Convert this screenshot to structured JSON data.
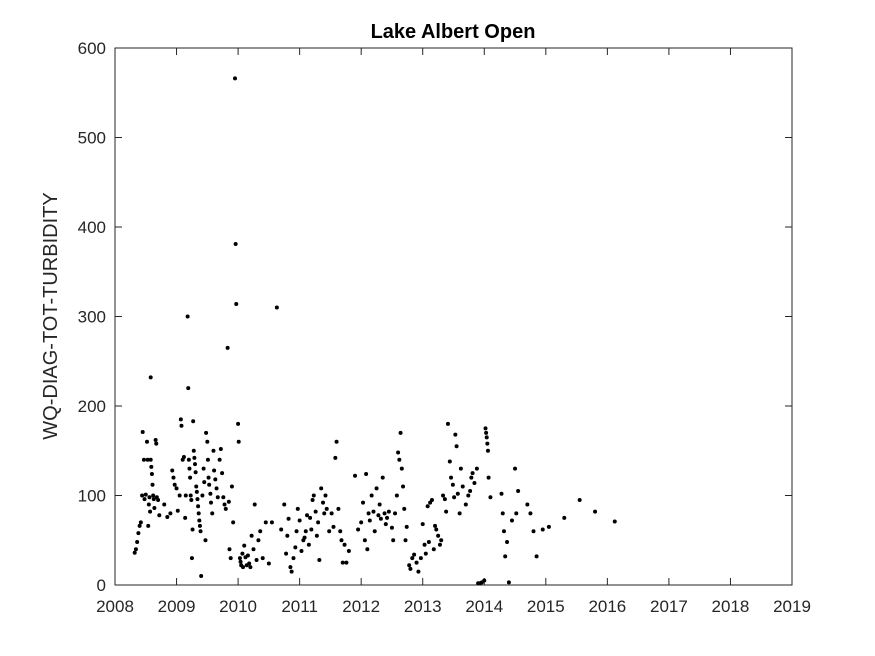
{
  "chart_data": {
    "type": "scatter",
    "title": "Lake Albert Open",
    "xlabel": "",
    "ylabel": "WQ-DIAG-TOT-TURBIDITY",
    "xlim": [
      2008,
      2019
    ],
    "ylim": [
      0,
      600
    ],
    "xticks": [
      "2008",
      "2009",
      "2010",
      "2011",
      "2012",
      "2013",
      "2014",
      "2015",
      "2016",
      "2017",
      "2018",
      "2019"
    ],
    "yticks": [
      "0",
      "100",
      "200",
      "300",
      "400",
      "500",
      "600"
    ],
    "grid": false,
    "marker_color": "#000000",
    "x_unit": "year (decimal)",
    "points": [
      [
        2008.32,
        36
      ],
      [
        2008.34,
        40
      ],
      [
        2008.36,
        48
      ],
      [
        2008.38,
        58
      ],
      [
        2008.4,
        66
      ],
      [
        2008.42,
        70
      ],
      [
        2008.44,
        100
      ],
      [
        2008.45,
        171
      ],
      [
        2008.47,
        140
      ],
      [
        2008.48,
        96
      ],
      [
        2008.5,
        101
      ],
      [
        2008.52,
        160
      ],
      [
        2008.53,
        140
      ],
      [
        2008.54,
        66
      ],
      [
        2008.55,
        90
      ],
      [
        2008.56,
        98
      ],
      [
        2008.57,
        82
      ],
      [
        2008.58,
        232
      ],
      [
        2008.58,
        140
      ],
      [
        2008.59,
        132
      ],
      [
        2008.6,
        124
      ],
      [
        2008.61,
        112
      ],
      [
        2008.62,
        100
      ],
      [
        2008.63,
        96
      ],
      [
        2008.64,
        86
      ],
      [
        2008.66,
        162
      ],
      [
        2008.67,
        158
      ],
      [
        2008.68,
        98
      ],
      [
        2008.7,
        95
      ],
      [
        2008.72,
        78
      ],
      [
        2008.8,
        90
      ],
      [
        2008.85,
        76
      ],
      [
        2008.9,
        80
      ],
      [
        2008.93,
        128
      ],
      [
        2008.95,
        120
      ],
      [
        2008.97,
        112
      ],
      [
        2009.0,
        108
      ],
      [
        2009.02,
        83
      ],
      [
        2009.05,
        100
      ],
      [
        2009.07,
        185
      ],
      [
        2009.08,
        178
      ],
      [
        2009.1,
        140
      ],
      [
        2009.12,
        143
      ],
      [
        2009.14,
        75
      ],
      [
        2009.15,
        100
      ],
      [
        2009.18,
        300
      ],
      [
        2009.19,
        220
      ],
      [
        2009.2,
        140
      ],
      [
        2009.21,
        130
      ],
      [
        2009.22,
        120
      ],
      [
        2009.23,
        100
      ],
      [
        2009.24,
        95
      ],
      [
        2009.25,
        30
      ],
      [
        2009.26,
        62
      ],
      [
        2009.27,
        183
      ],
      [
        2009.28,
        150
      ],
      [
        2009.29,
        142
      ],
      [
        2009.3,
        135
      ],
      [
        2009.31,
        126
      ],
      [
        2009.32,
        110
      ],
      [
        2009.33,
        104
      ],
      [
        2009.34,
        96
      ],
      [
        2009.35,
        88
      ],
      [
        2009.36,
        80
      ],
      [
        2009.37,
        72
      ],
      [
        2009.38,
        66
      ],
      [
        2009.39,
        60
      ],
      [
        2009.4,
        10
      ],
      [
        2009.42,
        100
      ],
      [
        2009.44,
        130
      ],
      [
        2009.45,
        115
      ],
      [
        2009.47,
        50
      ],
      [
        2009.48,
        170
      ],
      [
        2009.5,
        160
      ],
      [
        2009.51,
        140
      ],
      [
        2009.52,
        120
      ],
      [
        2009.53,
        112
      ],
      [
        2009.55,
        102
      ],
      [
        2009.56,
        92
      ],
      [
        2009.58,
        80
      ],
      [
        2009.6,
        150
      ],
      [
        2009.61,
        128
      ],
      [
        2009.63,
        118
      ],
      [
        2009.65,
        108
      ],
      [
        2009.67,
        98
      ],
      [
        2009.7,
        140
      ],
      [
        2009.72,
        152
      ],
      [
        2009.74,
        125
      ],
      [
        2009.76,
        98
      ],
      [
        2009.78,
        90
      ],
      [
        2009.8,
        85
      ],
      [
        2009.83,
        265
      ],
      [
        2009.85,
        93
      ],
      [
        2009.86,
        40
      ],
      [
        2009.88,
        30
      ],
      [
        2009.9,
        110
      ],
      [
        2009.92,
        70
      ],
      [
        2009.95,
        566
      ],
      [
        2009.96,
        381
      ],
      [
        2009.97,
        314
      ],
      [
        2010.0,
        180
      ],
      [
        2010.01,
        160
      ],
      [
        2010.03,
        30
      ],
      [
        2010.04,
        26
      ],
      [
        2010.05,
        22
      ],
      [
        2010.07,
        35
      ],
      [
        2010.08,
        20
      ],
      [
        2010.1,
        44
      ],
      [
        2010.12,
        31
      ],
      [
        2010.14,
        22
      ],
      [
        2010.16,
        33
      ],
      [
        2010.18,
        24
      ],
      [
        2010.2,
        20
      ],
      [
        2010.22,
        55
      ],
      [
        2010.25,
        40
      ],
      [
        2010.27,
        90
      ],
      [
        2010.3,
        28
      ],
      [
        2010.33,
        50
      ],
      [
        2010.36,
        60
      ],
      [
        2010.4,
        30
      ],
      [
        2010.45,
        70
      ],
      [
        2010.5,
        24
      ],
      [
        2010.55,
        70
      ],
      [
        2010.63,
        310
      ],
      [
        2010.7,
        62
      ],
      [
        2010.75,
        90
      ],
      [
        2010.78,
        35
      ],
      [
        2010.8,
        55
      ],
      [
        2010.82,
        74
      ],
      [
        2010.85,
        20
      ],
      [
        2010.87,
        15
      ],
      [
        2010.9,
        30
      ],
      [
        2010.93,
        42
      ],
      [
        2010.95,
        60
      ],
      [
        2010.97,
        85
      ],
      [
        2011.0,
        72
      ],
      [
        2011.03,
        38
      ],
      [
        2011.06,
        50
      ],
      [
        2011.08,
        53
      ],
      [
        2011.1,
        60
      ],
      [
        2011.12,
        78
      ],
      [
        2011.15,
        45
      ],
      [
        2011.17,
        75
      ],
      [
        2011.19,
        62
      ],
      [
        2011.21,
        95
      ],
      [
        2011.23,
        100
      ],
      [
        2011.26,
        82
      ],
      [
        2011.28,
        55
      ],
      [
        2011.3,
        70
      ],
      [
        2011.32,
        28
      ],
      [
        2011.35,
        108
      ],
      [
        2011.38,
        92
      ],
      [
        2011.4,
        80
      ],
      [
        2011.42,
        100
      ],
      [
        2011.44,
        85
      ],
      [
        2011.48,
        60
      ],
      [
        2011.52,
        80
      ],
      [
        2011.55,
        65
      ],
      [
        2011.58,
        142
      ],
      [
        2011.6,
        160
      ],
      [
        2011.63,
        85
      ],
      [
        2011.66,
        60
      ],
      [
        2011.68,
        50
      ],
      [
        2011.7,
        25
      ],
      [
        2011.73,
        45
      ],
      [
        2011.76,
        25
      ],
      [
        2011.8,
        38
      ],
      [
        2011.9,
        122
      ],
      [
        2011.95,
        62
      ],
      [
        2012.0,
        70
      ],
      [
        2012.03,
        92
      ],
      [
        2012.06,
        50
      ],
      [
        2012.08,
        124
      ],
      [
        2012.1,
        40
      ],
      [
        2012.12,
        80
      ],
      [
        2012.14,
        72
      ],
      [
        2012.17,
        100
      ],
      [
        2012.2,
        82
      ],
      [
        2012.22,
        60
      ],
      [
        2012.25,
        108
      ],
      [
        2012.28,
        78
      ],
      [
        2012.3,
        90
      ],
      [
        2012.32,
        74
      ],
      [
        2012.35,
        120
      ],
      [
        2012.38,
        80
      ],
      [
        2012.4,
        68
      ],
      [
        2012.42,
        75
      ],
      [
        2012.45,
        82
      ],
      [
        2012.5,
        64
      ],
      [
        2012.52,
        50
      ],
      [
        2012.55,
        80
      ],
      [
        2012.58,
        100
      ],
      [
        2012.6,
        148
      ],
      [
        2012.62,
        140
      ],
      [
        2012.64,
        170
      ],
      [
        2012.66,
        130
      ],
      [
        2012.68,
        110
      ],
      [
        2012.7,
        85
      ],
      [
        2012.72,
        50
      ],
      [
        2012.74,
        65
      ],
      [
        2012.78,
        22
      ],
      [
        2012.8,
        18
      ],
      [
        2012.83,
        30
      ],
      [
        2012.86,
        34
      ],
      [
        2012.9,
        25
      ],
      [
        2012.93,
        15
      ],
      [
        2012.97,
        30
      ],
      [
        2013.0,
        68
      ],
      [
        2013.03,
        45
      ],
      [
        2013.05,
        35
      ],
      [
        2013.08,
        88
      ],
      [
        2013.1,
        48
      ],
      [
        2013.12,
        92
      ],
      [
        2013.15,
        95
      ],
      [
        2013.18,
        40
      ],
      [
        2013.2,
        66
      ],
      [
        2013.22,
        62
      ],
      [
        2013.25,
        55
      ],
      [
        2013.28,
        45
      ],
      [
        2013.3,
        50
      ],
      [
        2013.33,
        100
      ],
      [
        2013.36,
        96
      ],
      [
        2013.38,
        82
      ],
      [
        2013.41,
        180
      ],
      [
        2013.44,
        138
      ],
      [
        2013.46,
        120
      ],
      [
        2013.49,
        112
      ],
      [
        2013.51,
        98
      ],
      [
        2013.53,
        168
      ],
      [
        2013.55,
        155
      ],
      [
        2013.57,
        102
      ],
      [
        2013.6,
        80
      ],
      [
        2013.62,
        130
      ],
      [
        2013.65,
        110
      ],
      [
        2013.7,
        90
      ],
      [
        2013.74,
        100
      ],
      [
        2013.77,
        105
      ],
      [
        2013.79,
        120
      ],
      [
        2013.81,
        125
      ],
      [
        2013.84,
        114
      ],
      [
        2013.88,
        130
      ],
      [
        2013.9,
        2
      ],
      [
        2013.93,
        2
      ],
      [
        2013.96,
        3
      ],
      [
        2014.0,
        5
      ],
      [
        2014.02,
        175
      ],
      [
        2014.03,
        170
      ],
      [
        2014.04,
        165
      ],
      [
        2014.05,
        158
      ],
      [
        2014.06,
        150
      ],
      [
        2014.07,
        120
      ],
      [
        2014.1,
        98
      ],
      [
        2014.28,
        102
      ],
      [
        2014.3,
        80
      ],
      [
        2014.32,
        60
      ],
      [
        2014.34,
        32
      ],
      [
        2014.37,
        48
      ],
      [
        2014.4,
        3
      ],
      [
        2014.45,
        72
      ],
      [
        2014.5,
        130
      ],
      [
        2014.52,
        80
      ],
      [
        2014.55,
        105
      ],
      [
        2014.7,
        90
      ],
      [
        2014.75,
        80
      ],
      [
        2014.8,
        60
      ],
      [
        2014.85,
        32
      ],
      [
        2014.95,
        62
      ],
      [
        2015.05,
        65
      ],
      [
        2015.3,
        75
      ],
      [
        2015.55,
        95
      ],
      [
        2015.8,
        82
      ],
      [
        2016.12,
        71
      ]
    ]
  }
}
